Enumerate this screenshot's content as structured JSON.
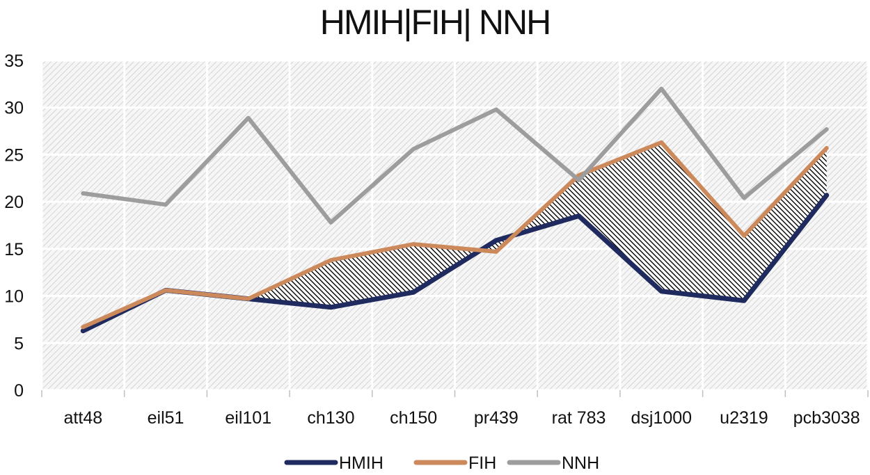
{
  "chart_data": {
    "type": "line",
    "title": "HMIH|FIH| NNH",
    "xlabel": "",
    "ylabel": "",
    "categories": [
      "att48",
      "eil51",
      "eil101",
      "ch130",
      "ch150",
      "pr439",
      "rat 783",
      "dsj1000",
      "u2319",
      "pcb3038"
    ],
    "ylim": [
      0,
      35
    ],
    "yticks": [
      0,
      5,
      10,
      15,
      20,
      25,
      30,
      35
    ],
    "grid": true,
    "legend_position": "bottom",
    "shaded_region": "between HMIH and FIH",
    "series": [
      {
        "name": "HMIH",
        "color": "#1f2a5e",
        "values": [
          6.3,
          10.6,
          9.7,
          8.8,
          10.4,
          15.9,
          18.5,
          10.5,
          9.5,
          20.7
        ]
      },
      {
        "name": "FIH",
        "color": "#cc8a5c",
        "values": [
          6.7,
          10.6,
          9.7,
          13.8,
          15.5,
          14.7,
          22.8,
          26.3,
          16.4,
          25.7
        ]
      },
      {
        "name": "NNH",
        "color": "#9d9d9d",
        "values": [
          20.9,
          19.7,
          28.9,
          17.8,
          25.6,
          29.8,
          22.3,
          32.0,
          20.4,
          27.7
        ]
      }
    ]
  }
}
